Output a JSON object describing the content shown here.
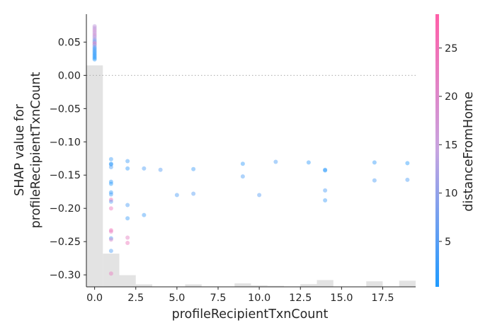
{
  "chart_data": {
    "type": "scatter",
    "title": "",
    "xlabel": "profileRecipientTxnCount",
    "ylabel_lines": [
      "SHAP value for",
      "profileRecipientTxnCount"
    ],
    "xlim": [
      -0.5,
      19.5
    ],
    "ylim": [
      -0.318,
      0.092
    ],
    "xticks": [
      0.0,
      2.5,
      5.0,
      7.5,
      10.0,
      12.5,
      15.0,
      17.5
    ],
    "xtick_labels": [
      "0.0",
      "2.5",
      "5.0",
      "7.5",
      "10.0",
      "12.5",
      "15.0",
      "17.5"
    ],
    "yticks": [
      0.05,
      0.0,
      -0.05,
      -0.1,
      -0.15,
      -0.2,
      -0.25,
      -0.3
    ],
    "ytick_labels": [
      "0.05",
      "0.00",
      "−0.05",
      "−0.10",
      "−0.15",
      "−0.20",
      "−0.25",
      "−0.30"
    ],
    "zero_line": true,
    "grid": false,
    "colorbar": {
      "label": "distanceFromHome",
      "range": [
        0.3,
        28.5
      ],
      "ticks": [
        5,
        10,
        15,
        20,
        25
      ],
      "tick_labels": [
        "5",
        "10",
        "15",
        "20",
        "25"
      ],
      "color_low": "#1f9bff",
      "color_mid": "#c7a4e0",
      "color_high": "#ff5fa8"
    },
    "histogram": {
      "bin_width": 1,
      "bins": [
        {
          "x0": -0.5,
          "count": 1800
        },
        {
          "x0": 0.5,
          "count": 270
        },
        {
          "x0": 1.5,
          "count": 95
        },
        {
          "x0": 2.5,
          "count": 20
        },
        {
          "x0": 5.5,
          "count": 20
        },
        {
          "x0": 8.5,
          "count": 28
        },
        {
          "x0": 9.5,
          "count": 12
        },
        {
          "x0": 10.5,
          "count": 8
        },
        {
          "x0": 12.5,
          "count": 22
        },
        {
          "x0": 13.5,
          "count": 55
        },
        {
          "x0": 16.5,
          "count": 45
        },
        {
          "x0": 18.5,
          "count": 50
        }
      ]
    },
    "series": [
      {
        "points": [
          {
            "x": 0,
            "y": 0.074,
            "c": 14
          },
          {
            "x": 0,
            "y": 0.072,
            "c": 16
          },
          {
            "x": 0,
            "y": 0.07,
            "c": 13
          },
          {
            "x": 0,
            "y": 0.068,
            "c": 18
          },
          {
            "x": 0,
            "y": 0.066,
            "c": 15
          },
          {
            "x": 0,
            "y": 0.064,
            "c": 17
          },
          {
            "x": 0,
            "y": 0.062,
            "c": 14
          },
          {
            "x": 0,
            "y": 0.06,
            "c": 20
          },
          {
            "x": 0,
            "y": 0.058,
            "c": 12
          },
          {
            "x": 0,
            "y": 0.056,
            "c": 15
          },
          {
            "x": 0,
            "y": 0.054,
            "c": 10
          },
          {
            "x": 0,
            "y": 0.052,
            "c": 8
          },
          {
            "x": 0,
            "y": 0.05,
            "c": 6
          },
          {
            "x": 0,
            "y": 0.049,
            "c": 19
          },
          {
            "x": 0,
            "y": 0.047,
            "c": 24
          },
          {
            "x": 0,
            "y": 0.046,
            "c": 9
          },
          {
            "x": 0,
            "y": 0.044,
            "c": 11
          },
          {
            "x": 0,
            "y": 0.042,
            "c": 5
          },
          {
            "x": 0,
            "y": 0.04,
            "c": 3
          },
          {
            "x": 0,
            "y": 0.038,
            "c": 4
          },
          {
            "x": 0,
            "y": 0.036,
            "c": 2
          },
          {
            "x": 0,
            "y": 0.034,
            "c": 3
          },
          {
            "x": 0,
            "y": 0.032,
            "c": 2
          },
          {
            "x": 0,
            "y": 0.03,
            "c": 1
          },
          {
            "x": 0,
            "y": 0.028,
            "c": 2
          },
          {
            "x": 0,
            "y": 0.026,
            "c": 1
          },
          {
            "x": 0,
            "y": 0.024,
            "c": 1
          },
          {
            "x": 1,
            "y": -0.126,
            "c": 3
          },
          {
            "x": 1,
            "y": -0.133,
            "c": 1
          },
          {
            "x": 1,
            "y": -0.134,
            "c": 2
          },
          {
            "x": 1,
            "y": -0.138,
            "c": 4
          },
          {
            "x": 1,
            "y": -0.16,
            "c": 2
          },
          {
            "x": 1,
            "y": -0.163,
            "c": 1
          },
          {
            "x": 1,
            "y": -0.176,
            "c": 2
          },
          {
            "x": 1,
            "y": -0.179,
            "c": 3
          },
          {
            "x": 1,
            "y": -0.187,
            "c": 26
          },
          {
            "x": 1,
            "y": -0.19,
            "c": 5
          },
          {
            "x": 1,
            "y": -0.2,
            "c": 24
          },
          {
            "x": 1,
            "y": -0.233,
            "c": 25
          },
          {
            "x": 1,
            "y": -0.235,
            "c": 22
          },
          {
            "x": 1,
            "y": -0.245,
            "c": 3
          },
          {
            "x": 1,
            "y": -0.247,
            "c": 20
          },
          {
            "x": 1,
            "y": -0.264,
            "c": 4
          },
          {
            "x": 1,
            "y": -0.298,
            "c": 23
          },
          {
            "x": 2,
            "y": -0.129,
            "c": 3
          },
          {
            "x": 2,
            "y": -0.14,
            "c": 2
          },
          {
            "x": 2,
            "y": -0.195,
            "c": 4
          },
          {
            "x": 2,
            "y": -0.215,
            "c": 3
          },
          {
            "x": 2,
            "y": -0.244,
            "c": 22
          },
          {
            "x": 2,
            "y": -0.252,
            "c": 24
          },
          {
            "x": 3,
            "y": -0.14,
            "c": 4
          },
          {
            "x": 3,
            "y": -0.21,
            "c": 3
          },
          {
            "x": 4,
            "y": -0.142,
            "c": 5
          },
          {
            "x": 5,
            "y": -0.18,
            "c": 4
          },
          {
            "x": 6,
            "y": -0.141,
            "c": 3
          },
          {
            "x": 6,
            "y": -0.178,
            "c": 5
          },
          {
            "x": 9,
            "y": -0.133,
            "c": 2
          },
          {
            "x": 9,
            "y": -0.152,
            "c": 4
          },
          {
            "x": 10,
            "y": -0.18,
            "c": 5
          },
          {
            "x": 11,
            "y": -0.13,
            "c": 4
          },
          {
            "x": 13,
            "y": -0.131,
            "c": 2
          },
          {
            "x": 14,
            "y": -0.142,
            "c": 2
          },
          {
            "x": 14,
            "y": -0.143,
            "c": 1
          },
          {
            "x": 14,
            "y": -0.173,
            "c": 4
          },
          {
            "x": 14,
            "y": -0.188,
            "c": 3
          },
          {
            "x": 17,
            "y": -0.131,
            "c": 2
          },
          {
            "x": 17,
            "y": -0.158,
            "c": 4
          },
          {
            "x": 19,
            "y": -0.132,
            "c": 1
          },
          {
            "x": 19,
            "y": -0.157,
            "c": 4
          }
        ]
      }
    ]
  }
}
